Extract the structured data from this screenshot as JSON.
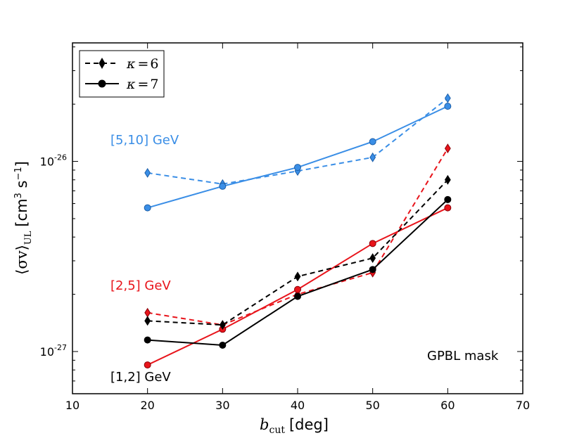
{
  "chart_data": {
    "type": "line",
    "xlabel": "b_cut [deg]",
    "xlabel_parts": {
      "sym": "b",
      "sub": "cut",
      "unit": "[deg]"
    },
    "ylabel": "⟨σv⟩_UL [cm³ s⁻¹]",
    "ylabel_parts": {
      "sym": "⟨σv⟩",
      "sub": "UL",
      "unit_pre": "[cm",
      "unit_exp1": "3",
      "unit_mid": " s",
      "unit_exp2": "−1",
      "unit_post": "]"
    },
    "xlim": [
      10,
      70
    ],
    "ylim": [
      6e-28,
      4.2e-26
    ],
    "yscale": "log",
    "xticks": [
      10,
      20,
      30,
      40,
      50,
      60,
      70
    ],
    "yticks": [
      {
        "value": 1e-27,
        "base": "10",
        "exp": "-27"
      },
      {
        "value": 1e-26,
        "base": "10",
        "exp": "-26"
      }
    ],
    "legend": {
      "location": "top-left",
      "entries": [
        {
          "label": "κ = 6",
          "kappa": "6",
          "marker": "diamond",
          "linestyle": "dashed",
          "color": "#000000"
        },
        {
          "label": "κ = 7",
          "kappa": "7",
          "marker": "circle",
          "linestyle": "solid",
          "color": "#000000"
        }
      ]
    },
    "annotations": [
      {
        "text": "[5,10] GeV",
        "color": "#3a8ee6"
      },
      {
        "text": "[2,5] GeV",
        "color": "#e8141b"
      },
      {
        "text": "[1,2] GeV",
        "color": "#000000"
      },
      {
        "text": "GPBL mask",
        "color": "#000000"
      }
    ],
    "series": [
      {
        "band": "[5,10] GeV",
        "kappa": 6,
        "color": "#3a8ee6",
        "marker": "diamond",
        "linestyle": "dashed",
        "x": [
          20,
          30,
          40,
          50,
          60
        ],
        "y": [
          8.7e-27,
          7.6e-27,
          8.9e-27,
          1.05e-26,
          2.15e-26
        ]
      },
      {
        "band": "[5,10] GeV",
        "kappa": 7,
        "color": "#3a8ee6",
        "marker": "circle",
        "linestyle": "solid",
        "x": [
          20,
          30,
          40,
          50,
          60
        ],
        "y": [
          5.7e-27,
          7.4e-27,
          9.3e-27,
          1.27e-26,
          1.95e-26
        ]
      },
      {
        "band": "[2,5] GeV",
        "kappa": 6,
        "color": "#e8141b",
        "marker": "diamond",
        "linestyle": "dashed",
        "x": [
          20,
          30,
          40,
          50,
          60
        ],
        "y": [
          1.6e-27,
          1.38e-27,
          2e-27,
          2.6e-27,
          1.17e-26
        ]
      },
      {
        "band": "[2,5] GeV",
        "kappa": 7,
        "color": "#e8141b",
        "marker": "circle",
        "linestyle": "solid",
        "x": [
          20,
          30,
          40,
          50,
          60
        ],
        "y": [
          8.5e-28,
          1.31e-27,
          2.12e-27,
          3.7e-27,
          5.7e-27
        ]
      },
      {
        "band": "[1,2] GeV",
        "kappa": 6,
        "color": "#000000",
        "marker": "diamond",
        "linestyle": "dashed",
        "x": [
          20,
          30,
          40,
          50,
          60
        ],
        "y": [
          1.45e-27,
          1.38e-27,
          2.48e-27,
          3.1e-27,
          8e-27
        ]
      },
      {
        "band": "[1,2] GeV",
        "kappa": 7,
        "color": "#000000",
        "marker": "circle",
        "linestyle": "solid",
        "x": [
          20,
          30,
          40,
          50,
          60
        ],
        "y": [
          1.15e-27,
          1.08e-27,
          1.95e-27,
          2.7e-27,
          6.3e-27
        ]
      }
    ]
  }
}
